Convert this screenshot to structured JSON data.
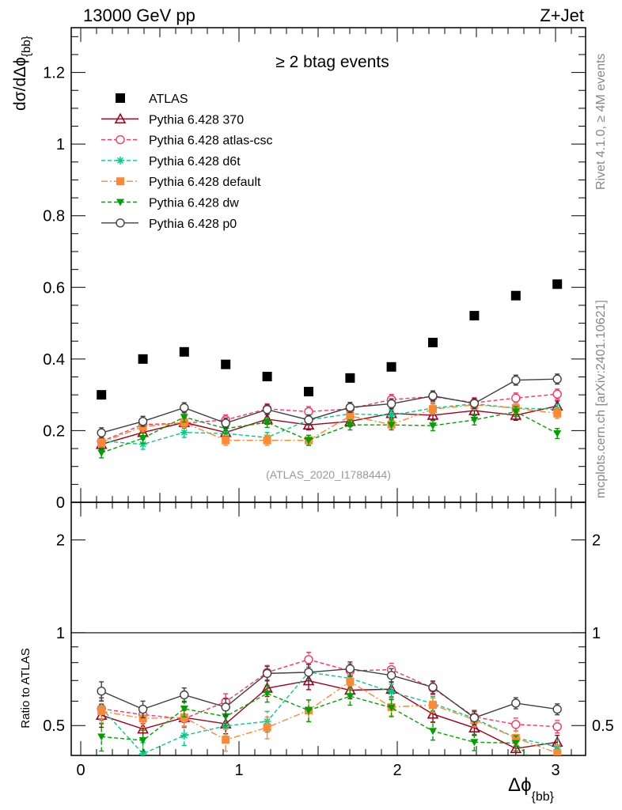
{
  "header": {
    "left": "13000 GeV pp",
    "right": "Z+Jet"
  },
  "side_labels": {
    "top": "Rivet 4.1.0, ≥ 4M events",
    "bottom": "mcplots.cern.ch [arXiv:2401.10621]"
  },
  "chart_data": {
    "type": "line",
    "title": "≥ 2 btag events",
    "watermark": "(ATLAS_2020_I1788444)",
    "xlabel": {
      "main": "Δϕ",
      "sub": "{bb}"
    },
    "ylabel": {
      "main": "dσ/dΔϕ",
      "sub": "{bb}"
    },
    "ratio_ylabel": "Ratio to ATLAS",
    "xlim": [
      -0.06,
      3.19
    ],
    "ylim": [
      0,
      1.325
    ],
    "ratio_ylim": [
      0.4,
      2.65
    ],
    "ratio_scale": "log",
    "x_ticks": [
      "0",
      "1",
      "2",
      "3"
    ],
    "y_ticks": [
      "0",
      "0.2",
      "0.4",
      "0.6",
      "0.8",
      "1",
      "1.2"
    ],
    "ratio_ticks": [
      "0.5",
      "1",
      "2"
    ],
    "legend_position": "top-left",
    "x": [
      0.131,
      0.393,
      0.654,
      0.916,
      1.178,
      1.44,
      1.702,
      1.963,
      2.225,
      2.487,
      2.749,
      3.011
    ],
    "reference": {
      "name": "ATLAS",
      "color": "#000000",
      "marker": "square",
      "values": [
        0.3,
        0.4,
        0.42,
        0.385,
        0.351,
        0.309,
        0.347,
        0.378,
        0.446,
        0.521,
        0.577,
        0.609
      ]
    },
    "series": [
      {
        "name": "Pythia 6.428 370",
        "color": "#a0001c",
        "marker": "triangle-open",
        "dash": "solid",
        "err": 0.014,
        "values": [
          0.162,
          0.195,
          0.223,
          0.195,
          0.232,
          0.216,
          0.226,
          0.248,
          0.243,
          0.256,
          0.243,
          0.269
        ]
      },
      {
        "name": "Pythia 6.428 atlas-csc",
        "color": "#ff3366",
        "marker": "circle-open",
        "dash": "dashed",
        "err": 0.014,
        "values": [
          0.17,
          0.217,
          0.221,
          0.23,
          0.261,
          0.253,
          0.261,
          0.287,
          0.295,
          0.278,
          0.291,
          0.302
        ]
      },
      {
        "name": "Pythia 6.428 d6t",
        "color": "#00cc88",
        "marker": "star",
        "dash": "dashed",
        "err": 0.014,
        "values": [
          0.171,
          0.162,
          0.195,
          0.192,
          0.181,
          0.23,
          0.247,
          0.243,
          0.263,
          0.275,
          0.263,
          0.26
        ]
      },
      {
        "name": "Pythia 6.428 default",
        "color": "#ff8833",
        "marker": "square",
        "dash": "dashdot",
        "err": 0.014,
        "values": [
          0.167,
          0.211,
          0.223,
          0.173,
          0.173,
          0.173,
          0.241,
          0.217,
          0.26,
          0.272,
          0.263,
          0.248
        ]
      },
      {
        "name": "Pythia 6.428 dw",
        "color": "#00a000",
        "marker": "triangle-down",
        "dash": "dashed",
        "err": 0.014,
        "values": [
          0.138,
          0.179,
          0.238,
          0.206,
          0.223,
          0.173,
          0.216,
          0.216,
          0.214,
          0.23,
          0.253,
          0.192
        ]
      },
      {
        "name": "Pythia 6.428 p0",
        "color": "#404040",
        "marker": "circle-open",
        "dash": "solid",
        "err": 0.014,
        "values": [
          0.194,
          0.226,
          0.264,
          0.221,
          0.259,
          0.23,
          0.265,
          0.275,
          0.297,
          0.276,
          0.341,
          0.344
        ]
      }
    ]
  }
}
